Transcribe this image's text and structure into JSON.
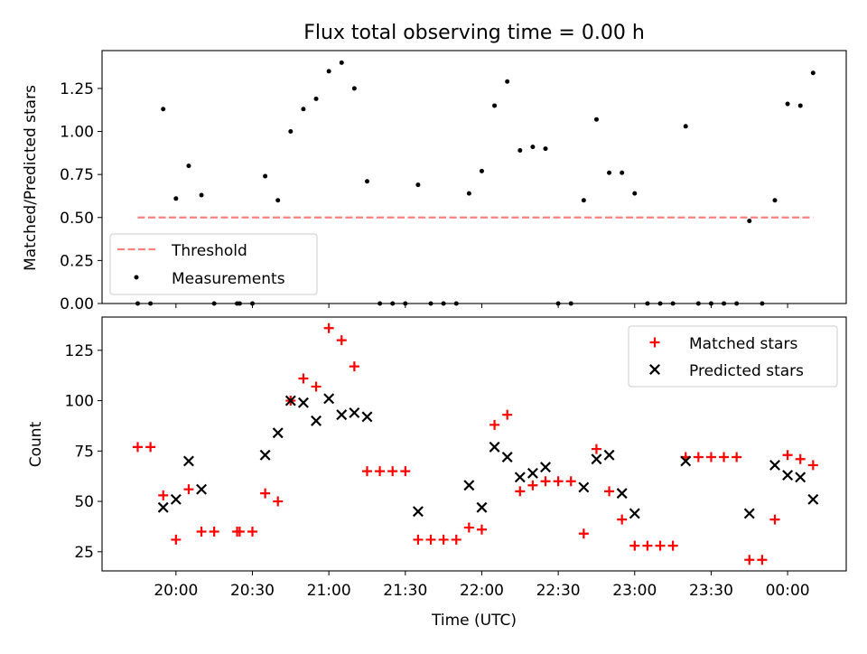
{
  "chart_data": [
    {
      "type": "scatter",
      "title": "Flux total observing time = 0.00 h",
      "xlabel": "",
      "ylabel": "Matched/Predicted stars",
      "xlim": [
        "19:31",
        "00:23"
      ],
      "ylim": [
        0,
        1.47
      ],
      "yticks": [
        "0.00",
        "0.25",
        "0.50",
        "0.75",
        "1.00",
        "1.25"
      ],
      "ytick_values": [
        0,
        0.25,
        0.5,
        0.75,
        1.0,
        1.25
      ],
      "legend_position": "lower-left",
      "threshold": {
        "name": "Threshold",
        "value": 0.5,
        "x_start": "19:45",
        "x_end": "00:10",
        "color": "#ff8080"
      },
      "series": [
        {
          "name": "Measurements",
          "color": "#000000",
          "points": [
            [
              "19:45",
              0
            ],
            [
              "19:50",
              0
            ],
            [
              "19:55",
              1.13
            ],
            [
              "20:00",
              0.61
            ],
            [
              "20:05",
              0.8
            ],
            [
              "20:10",
              0.63
            ],
            [
              "20:15",
              0
            ],
            [
              "20:24",
              0
            ],
            [
              "20:25",
              0
            ],
            [
              "20:30",
              0
            ],
            [
              "20:35",
              0.74
            ],
            [
              "20:40",
              0.6
            ],
            [
              "20:45",
              1.0
            ],
            [
              "20:50",
              1.13
            ],
            [
              "20:55",
              1.19
            ],
            [
              "21:00",
              1.35
            ],
            [
              "21:05",
              1.4
            ],
            [
              "21:10",
              1.25
            ],
            [
              "21:15",
              0.71
            ],
            [
              "21:20",
              0
            ],
            [
              "21:25",
              0
            ],
            [
              "21:30",
              0
            ],
            [
              "21:35",
              0.69
            ],
            [
              "21:40",
              0
            ],
            [
              "21:45",
              0
            ],
            [
              "21:50",
              0
            ],
            [
              "21:55",
              0.64
            ],
            [
              "22:00",
              0.77
            ],
            [
              "22:05",
              1.15
            ],
            [
              "22:10",
              1.29
            ],
            [
              "22:15",
              0.89
            ],
            [
              "22:20",
              0.91
            ],
            [
              "22:25",
              0.9
            ],
            [
              "22:30",
              0
            ],
            [
              "22:35",
              0
            ],
            [
              "22:40",
              0.6
            ],
            [
              "22:45",
              1.07
            ],
            [
              "22:50",
              0.76
            ],
            [
              "22:55",
              0.76
            ],
            [
              "23:00",
              0.64
            ],
            [
              "23:05",
              0
            ],
            [
              "23:10",
              0
            ],
            [
              "23:15",
              0
            ],
            [
              "23:20",
              1.03
            ],
            [
              "23:25",
              0
            ],
            [
              "23:30",
              0
            ],
            [
              "23:35",
              0
            ],
            [
              "23:40",
              0
            ],
            [
              "23:45",
              0.48
            ],
            [
              "23:50",
              0
            ],
            [
              "23:55",
              0.6
            ],
            [
              "00:00",
              1.16
            ],
            [
              "00:05",
              1.15
            ],
            [
              "00:10",
              1.34
            ]
          ]
        }
      ]
    },
    {
      "type": "scatter",
      "title": "",
      "xlabel": "Time (UTC)",
      "ylabel": "Count",
      "xlim": [
        "19:31",
        "00:23"
      ],
      "ylim": [
        15.5,
        141.5
      ],
      "xticks": [
        "20:00",
        "20:30",
        "21:00",
        "21:30",
        "22:00",
        "22:30",
        "23:00",
        "23:30",
        "00:00"
      ],
      "yticks": [
        "25",
        "50",
        "75",
        "100",
        "125"
      ],
      "ytick_values": [
        25,
        50,
        75,
        100,
        125
      ],
      "legend_position": "top-right",
      "series": [
        {
          "name": "Matched stars",
          "marker": "+",
          "color": "#ff0000",
          "points": [
            [
              "19:45",
              77
            ],
            [
              "19:50",
              77
            ],
            [
              "19:55",
              53
            ],
            [
              "20:00",
              31
            ],
            [
              "20:05",
              56
            ],
            [
              "20:10",
              35
            ],
            [
              "20:15",
              35
            ],
            [
              "20:24",
              35
            ],
            [
              "20:25",
              35
            ],
            [
              "20:30",
              35
            ],
            [
              "20:35",
              54
            ],
            [
              "20:40",
              50
            ],
            [
              "20:45",
              100
            ],
            [
              "20:50",
              111
            ],
            [
              "20:55",
              107
            ],
            [
              "21:00",
              136
            ],
            [
              "21:05",
              130
            ],
            [
              "21:10",
              117
            ],
            [
              "21:15",
              65
            ],
            [
              "21:20",
              65
            ],
            [
              "21:25",
              65
            ],
            [
              "21:30",
              65
            ],
            [
              "21:35",
              31
            ],
            [
              "21:40",
              31
            ],
            [
              "21:45",
              31
            ],
            [
              "21:50",
              31
            ],
            [
              "21:55",
              37
            ],
            [
              "22:00",
              36
            ],
            [
              "22:05",
              88
            ],
            [
              "22:10",
              93
            ],
            [
              "22:15",
              55
            ],
            [
              "22:20",
              58
            ],
            [
              "22:25",
              60
            ],
            [
              "22:30",
              60
            ],
            [
              "22:35",
              60
            ],
            [
              "22:40",
              34
            ],
            [
              "22:45",
              76
            ],
            [
              "22:50",
              55
            ],
            [
              "22:55",
              41
            ],
            [
              "23:00",
              28
            ],
            [
              "23:05",
              28
            ],
            [
              "23:10",
              28
            ],
            [
              "23:15",
              28
            ],
            [
              "23:20",
              72
            ],
            [
              "23:25",
              72
            ],
            [
              "23:30",
              72
            ],
            [
              "23:35",
              72
            ],
            [
              "23:40",
              72
            ],
            [
              "23:45",
              21
            ],
            [
              "23:50",
              21
            ],
            [
              "23:55",
              41
            ],
            [
              "00:00",
              73
            ],
            [
              "00:05",
              71
            ],
            [
              "00:10",
              68
            ]
          ]
        },
        {
          "name": "Predicted stars",
          "marker": "x",
          "color": "#000000",
          "points": [
            [
              "19:55",
              47
            ],
            [
              "20:00",
              51
            ],
            [
              "20:05",
              70
            ],
            [
              "20:10",
              56
            ],
            [
              "20:35",
              73
            ],
            [
              "20:40",
              84
            ],
            [
              "20:45",
              100
            ],
            [
              "20:50",
              99
            ],
            [
              "20:55",
              90
            ],
            [
              "21:00",
              101
            ],
            [
              "21:05",
              93
            ],
            [
              "21:10",
              94
            ],
            [
              "21:15",
              92
            ],
            [
              "21:35",
              45
            ],
            [
              "21:55",
              58
            ],
            [
              "22:00",
              47
            ],
            [
              "22:05",
              77
            ],
            [
              "22:10",
              72
            ],
            [
              "22:15",
              62
            ],
            [
              "22:20",
              64
            ],
            [
              "22:25",
              67
            ],
            [
              "22:40",
              57
            ],
            [
              "22:45",
              71
            ],
            [
              "22:50",
              73
            ],
            [
              "22:55",
              54
            ],
            [
              "23:00",
              44
            ],
            [
              "23:20",
              70
            ],
            [
              "23:45",
              44
            ],
            [
              "23:55",
              68
            ],
            [
              "00:00",
              63
            ],
            [
              "00:05",
              62
            ],
            [
              "00:10",
              51
            ]
          ]
        }
      ]
    }
  ]
}
